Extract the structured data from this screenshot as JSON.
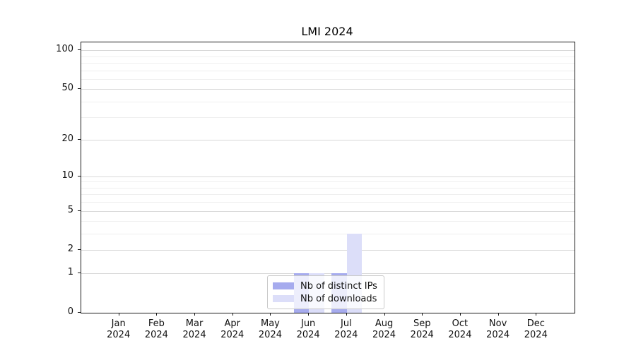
{
  "chart_data": {
    "type": "bar",
    "title": "LMI 2024",
    "categories": [
      "Jan",
      "Feb",
      "Mar",
      "Apr",
      "May",
      "Jun",
      "Jul",
      "Aug",
      "Sep",
      "Oct",
      "Nov",
      "Dec"
    ],
    "category_year": "2024",
    "series": [
      {
        "name": "Nb of distinct IPs",
        "color": "#a6abee",
        "values": [
          0,
          0,
          0,
          0,
          0,
          1,
          1,
          0,
          0,
          0,
          0,
          0
        ]
      },
      {
        "name": "Nb of downloads",
        "color": "#dcdef9",
        "values": [
          0,
          0,
          0,
          0,
          0,
          1,
          3,
          0,
          0,
          0,
          0,
          0
        ]
      }
    ],
    "yscale": "log1p",
    "ylim": [
      0,
      115
    ],
    "y_major_ticks": [
      0,
      1,
      2,
      5,
      10,
      20,
      50,
      100
    ],
    "y_minor_ticks": [
      3,
      4,
      6,
      7,
      8,
      9,
      30,
      40,
      60,
      70,
      80,
      90
    ],
    "grid": true,
    "legend_position": "lower-center-inside"
  },
  "colors": {
    "grid_major": "#d8d8d8",
    "grid_minor": "#efefef",
    "spine": "#1a1a1a",
    "tick_text": "#111111",
    "legend_border": "#c9c9c9",
    "legend_background": "rgba(255,255,255,0.8)"
  }
}
